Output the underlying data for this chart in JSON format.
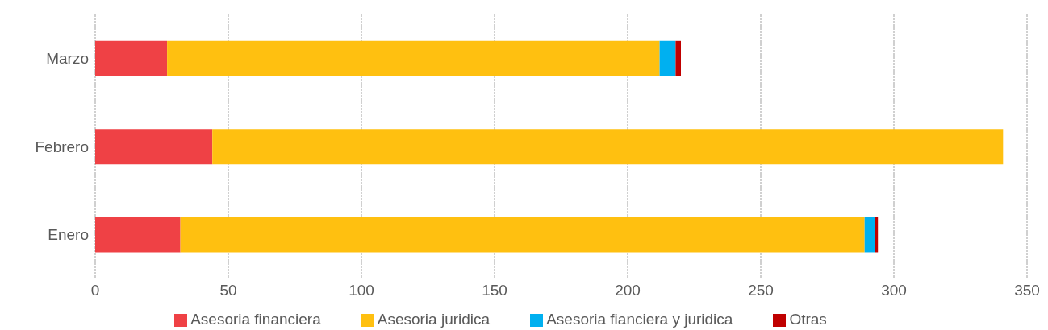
{
  "chart_data": {
    "type": "bar",
    "orientation": "horizontal",
    "stacked": true,
    "categories": [
      "Marzo",
      "Febrero",
      "Enero"
    ],
    "series": [
      {
        "name": "Asesoria financiera",
        "color": "#ef4145",
        "values": [
          27,
          44,
          32
        ]
      },
      {
        "name": "Asesoria juridica",
        "color": "#ffc010",
        "values": [
          185,
          297,
          257
        ]
      },
      {
        "name": "Asesoria fianciera y juridica",
        "color": "#00b0f0",
        "values": [
          6,
          0,
          4
        ]
      },
      {
        "name": "Otras",
        "color": "#c00000",
        "values": [
          2,
          0,
          1
        ]
      }
    ],
    "xlim": [
      0,
      350
    ],
    "xticks": [
      0,
      50,
      100,
      150,
      200,
      250,
      300,
      350
    ],
    "grid": "x",
    "legend": "bottom"
  }
}
